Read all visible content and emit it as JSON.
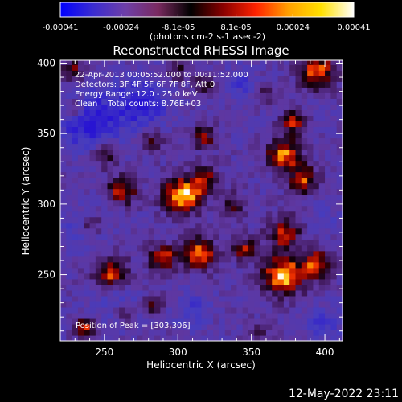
{
  "chart_data": {
    "type": "heatmap",
    "title": "Reconstructed RHESSI Image",
    "xlabel": "Heliocentric X (arcsec)",
    "ylabel": "Heliocentric Y (arcsec)",
    "xlim": [
      220,
      412
    ],
    "ylim": [
      203,
      402
    ],
    "xticks": [
      250,
      300,
      350,
      400
    ],
    "yticks": [
      250,
      300,
      350,
      400
    ],
    "colorbar": {
      "min": -0.00041,
      "max": 0.00041,
      "tick_values": [
        -0.00041,
        -0.00024,
        -8.1e-05,
        8.1e-05,
        0.00024,
        0.00041
      ],
      "tick_labels": [
        "-0.00041",
        "-0.00024",
        "-8.1e-05",
        "8.1e-05",
        "0.00024",
        "0.00041"
      ],
      "units_label": "(photons cm-2 s-1 asec-2)",
      "colors": [
        "#0000ff",
        "#3a2cd0",
        "#6e3fa8",
        "#7a2a60",
        "#000000",
        "#8a0000",
        "#ff2200",
        "#ffa000",
        "#ffe000",
        "#ffffff"
      ]
    },
    "info_lines": [
      "22-Apr-2013 00:05:52.000 to 00:11:52.000",
      "Detectors: 3F 4F 5F 6F 7F 8F, Att 0",
      "Energy Range: 12.0 - 25.0 keV",
      "Clean    Total counts: 8.76E+03"
    ],
    "peak_label": "Position of Peak = [303,306]",
    "peak": {
      "x": 303,
      "y": 306
    },
    "pixel_size_arcsec": 4,
    "sources": [
      {
        "x": 303,
        "y": 306,
        "sigma": 9,
        "amp": 1.0
      },
      {
        "x": 262,
        "y": 310,
        "sigma": 7,
        "amp": 0.72
      },
      {
        "x": 318,
        "y": 318,
        "sigma": 7,
        "amp": 0.55
      },
      {
        "x": 372,
        "y": 335,
        "sigma": 8,
        "amp": 0.85
      },
      {
        "x": 385,
        "y": 318,
        "sigma": 7,
        "amp": 0.7
      },
      {
        "x": 378,
        "y": 358,
        "sigma": 6,
        "amp": 0.6
      },
      {
        "x": 395,
        "y": 395,
        "sigma": 9,
        "amp": 0.8
      },
      {
        "x": 372,
        "y": 280,
        "sigma": 8,
        "amp": 0.65
      },
      {
        "x": 372,
        "y": 250,
        "sigma": 10,
        "amp": 0.95
      },
      {
        "x": 395,
        "y": 258,
        "sigma": 7,
        "amp": 0.75
      },
      {
        "x": 315,
        "y": 265,
        "sigma": 8,
        "amp": 0.85
      },
      {
        "x": 290,
        "y": 262,
        "sigma": 7,
        "amp": 0.7
      },
      {
        "x": 255,
        "y": 252,
        "sigma": 8,
        "amp": 0.75
      },
      {
        "x": 240,
        "y": 285,
        "sigma": 6,
        "amp": 0.55
      },
      {
        "x": 230,
        "y": 368,
        "sigma": 6,
        "amp": 0.5
      },
      {
        "x": 250,
        "y": 335,
        "sigma": 6,
        "amp": 0.5
      },
      {
        "x": 318,
        "y": 348,
        "sigma": 6,
        "amp": 0.55
      },
      {
        "x": 282,
        "y": 345,
        "sigma": 6,
        "amp": 0.45
      },
      {
        "x": 338,
        "y": 300,
        "sigma": 6,
        "amp": 0.45
      },
      {
        "x": 345,
        "y": 268,
        "sigma": 6,
        "amp": 0.6
      },
      {
        "x": 283,
        "y": 228,
        "sigma": 5,
        "amp": 0.45
      },
      {
        "x": 236,
        "y": 212,
        "sigma": 5,
        "amp": 0.7
      },
      {
        "x": 263,
        "y": 222,
        "sigma": 5,
        "amp": 0.45
      },
      {
        "x": 355,
        "y": 210,
        "sigma": 5,
        "amp": 0.4
      },
      {
        "x": 228,
        "y": 395,
        "sigma": 6,
        "amp": 0.55
      },
      {
        "x": 318,
        "y": 385,
        "sigma": 5,
        "amp": 0.45
      },
      {
        "x": 300,
        "y": 395,
        "sigma": 5,
        "amp": 0.4
      },
      {
        "x": 358,
        "y": 380,
        "sigma": 6,
        "amp": 0.35
      }
    ],
    "negative_regions": [
      {
        "x": 240,
        "y": 360,
        "sigma": 14,
        "amp": 0.85
      },
      {
        "x": 275,
        "y": 372,
        "sigma": 12,
        "amp": 0.75
      },
      {
        "x": 235,
        "y": 282,
        "sigma": 10,
        "amp": 0.45
      },
      {
        "x": 345,
        "y": 385,
        "sigma": 8,
        "amp": 0.45
      },
      {
        "x": 260,
        "y": 228,
        "sigma": 10,
        "amp": 0.35
      },
      {
        "x": 310,
        "y": 225,
        "sigma": 8,
        "amp": 0.45
      },
      {
        "x": 400,
        "y": 215,
        "sigma": 8,
        "amp": 0.45
      },
      {
        "x": 400,
        "y": 290,
        "sigma": 6,
        "amp": 0.3
      }
    ]
  },
  "footer": {
    "timestamp": "12-May-2022 23:11"
  }
}
